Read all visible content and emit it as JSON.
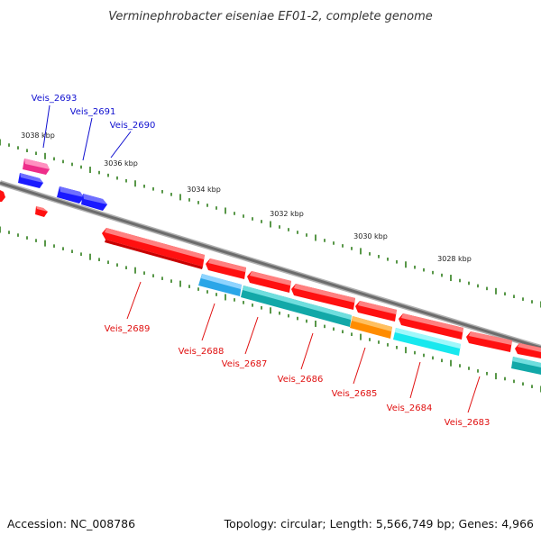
{
  "title": "Verminephrobacter eiseniae EF01-2, complete genome",
  "footer": {
    "accession": "Accession: NC_008786",
    "summary": "Topology: circular; Length: 5,566,749 bp; Genes: 4,966"
  },
  "colors": {
    "backbone": "#808080",
    "tick": "#2e7d1a",
    "forward_label": "#1010d0",
    "reverse_label": "#e01010",
    "cds_red": "#ff1010",
    "cds_blue": "#1a1aff",
    "cds_magenta": "#ee2d8a",
    "cds_cyan": "#18e8ee",
    "cds_teal": "#12a8a8",
    "cds_skyblue": "#2aa6e8",
    "cds_orange": "#ff8c00"
  },
  "scale": {
    "labels": [
      "3038 kbp",
      "3036 kbp",
      "3034 kbp",
      "3032 kbp",
      "3030 kbp",
      "3028 kbp"
    ]
  },
  "genes": {
    "forward": [
      {
        "name": "Veis_2693",
        "color": "cds_magenta"
      },
      {
        "name": "Veis_2691",
        "color": "cds_blue"
      },
      {
        "name": "Veis_2690",
        "color": "cds_blue"
      }
    ],
    "reverse": [
      {
        "name": "Veis_2689",
        "color": "cds_red"
      },
      {
        "name": "Veis_2688",
        "color": "cds_skyblue"
      },
      {
        "name": "Veis_2687",
        "color": "cds_teal"
      },
      {
        "name": "Veis_2686",
        "color": "cds_red"
      },
      {
        "name": "Veis_2685",
        "color": "cds_orange"
      },
      {
        "name": "Veis_2684",
        "color": "cds_cyan"
      },
      {
        "name": "Veis_2683",
        "color": "cds_teal"
      }
    ]
  }
}
